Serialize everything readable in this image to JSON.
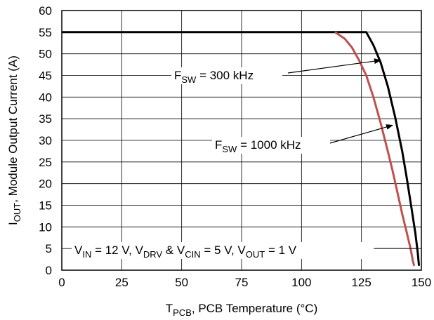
{
  "chart_data": {
    "type": "line",
    "xlabel": {
      "main": "T",
      "sub": "PCB",
      "rest": ", PCB Temperature (°C)"
    },
    "ylabel": {
      "main": "I",
      "sub": "OUT",
      "rest": ", Module Output Current (A)"
    },
    "xlim": [
      0,
      150
    ],
    "ylim": [
      0,
      60
    ],
    "xticks": [
      0,
      25,
      50,
      75,
      100,
      125,
      150
    ],
    "yticks": [
      0,
      5,
      10,
      15,
      20,
      25,
      30,
      35,
      40,
      45,
      50,
      55,
      60
    ],
    "grid": true,
    "series": [
      {
        "color": "#000000",
        "points": [
          [
            0,
            55
          ],
          [
            127,
            55
          ],
          [
            130,
            52
          ],
          [
            133,
            48
          ],
          [
            136,
            42.5
          ],
          [
            139,
            35.5
          ],
          [
            142,
            27.5
          ],
          [
            144,
            21
          ],
          [
            146,
            14
          ],
          [
            147.5,
            8.5
          ],
          [
            148.5,
            4
          ],
          [
            149,
            1
          ]
        ]
      },
      {
        "color": "#c0504d",
        "points": [
          [
            114,
            55
          ],
          [
            118,
            53.5
          ],
          [
            121,
            51.5
          ],
          [
            124,
            48.5
          ],
          [
            127,
            45
          ],
          [
            130,
            40
          ],
          [
            133,
            34
          ],
          [
            136,
            27.5
          ],
          [
            138,
            23
          ],
          [
            140,
            18
          ],
          [
            142,
            13
          ],
          [
            144,
            8.5
          ],
          [
            145.5,
            5
          ],
          [
            146.5,
            2
          ],
          [
            147,
            1
          ]
        ]
      }
    ],
    "annotations": [
      {
        "id": "fsw300",
        "parts": [
          [
            "F",
            ""
          ],
          [
            "SW",
            "sub"
          ],
          [
            " = 300 kHz",
            ""
          ]
        ],
        "arrow_to": [
          133,
          48.5
        ]
      },
      {
        "id": "fsw1000",
        "parts": [
          [
            "F",
            ""
          ],
          [
            "SW",
            "sub"
          ],
          [
            " = 1000 kHz",
            ""
          ]
        ],
        "arrow_to": [
          138,
          33.5
        ]
      },
      {
        "id": "conditions",
        "parts": [
          [
            "V",
            ""
          ],
          [
            "IN",
            "sub"
          ],
          [
            " = 12 V, V",
            ""
          ],
          [
            "DRV",
            "sub"
          ],
          [
            " & V",
            ""
          ],
          [
            "CIN",
            "sub"
          ],
          [
            " = 5 V, V",
            ""
          ],
          [
            "OUT",
            "sub"
          ],
          [
            " = 1 V",
            ""
          ]
        ],
        "arrow_to": null
      }
    ]
  }
}
